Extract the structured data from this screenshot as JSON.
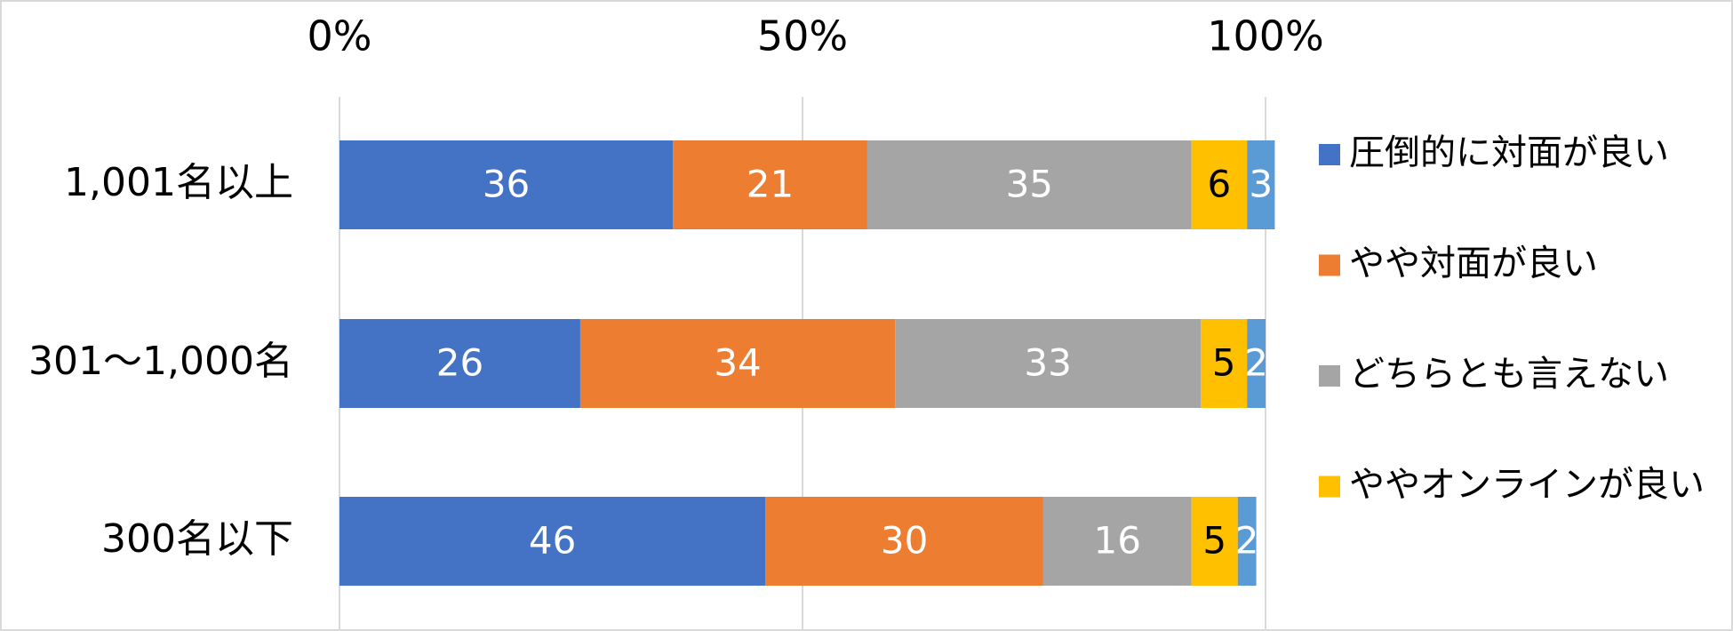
{
  "chart_data": {
    "type": "bar",
    "orientation": "horizontal",
    "stacked": true,
    "categories": [
      "1,001名以上",
      "301～1,000名",
      "300名以下"
    ],
    "series": [
      {
        "name": "圧倒的に対面が良い",
        "color": "#4472c4",
        "label_color": "#ffffff",
        "values": [
          36,
          26,
          46
        ]
      },
      {
        "name": "やや対面が良い",
        "color": "#ed7d31",
        "label_color": "#ffffff",
        "values": [
          21,
          34,
          30
        ]
      },
      {
        "name": "どちらとも言えない",
        "color": "#a5a5a5",
        "label_color": "#ffffff",
        "values": [
          35,
          33,
          16
        ]
      },
      {
        "name": "ややオンラインが良い",
        "color": "#ffc000",
        "label_color": "#000000",
        "values": [
          6,
          5,
          5
        ]
      },
      {
        "name": null,
        "color": "#5b9bd5",
        "label_color": "#ffffff",
        "values": [
          3,
          2,
          2
        ]
      }
    ],
    "xlim": [
      0,
      100
    ],
    "xticks": [
      {
        "value": 0,
        "label": "0%"
      },
      {
        "value": 50,
        "label": "50%"
      },
      {
        "value": 100,
        "label": "100%"
      }
    ],
    "grid": true,
    "legend": "right"
  }
}
